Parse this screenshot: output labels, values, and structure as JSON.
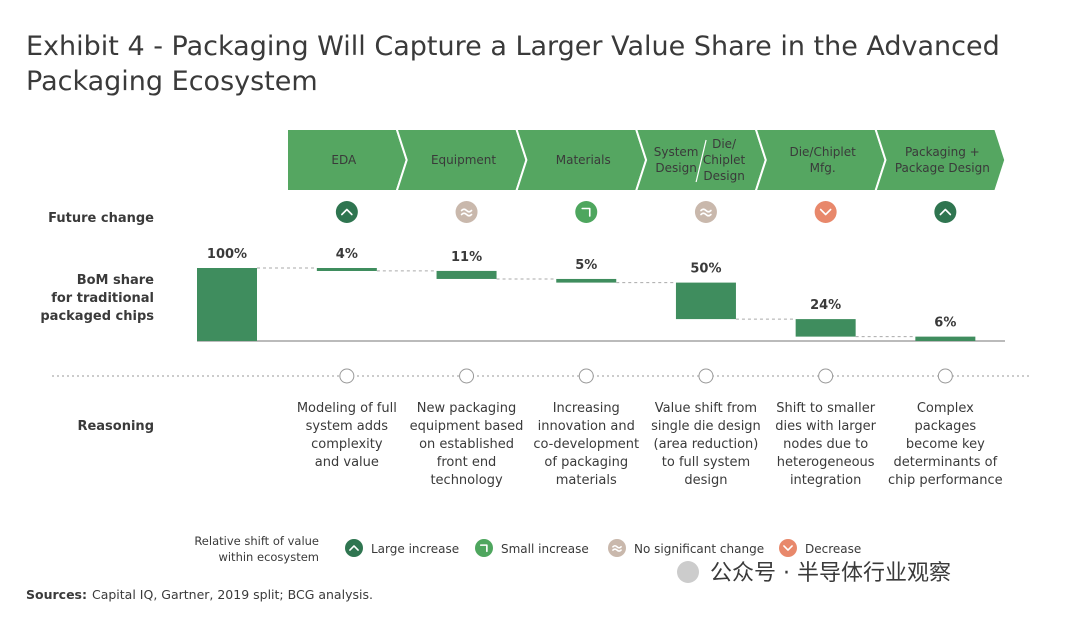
{
  "chart_data": {
    "type": "waterfall",
    "title": "Exhibit 4 - Packaging Will Capture a Larger Value Share in the Advanced\nPackaging Ecosystem",
    "categories": [
      "EDA",
      "Equipment",
      "Materials",
      [
        "System\nDesign",
        "Die/\nChiplet\nDesign"
      ],
      "Die/Chiplet\nMfg.",
      "Packaging +\nPackage Design"
    ],
    "total": 100,
    "total_label": "100%",
    "values": [
      4,
      11,
      5,
      50,
      24,
      6
    ],
    "value_labels": [
      "4%",
      "11%",
      "5%",
      "50%",
      "24%",
      "6%"
    ],
    "ylim": [
      0,
      100
    ],
    "color": "#3f8d5e",
    "stage_color": "#55a661",
    "row_labels": {
      "future_change": "Future change",
      "bom_share": "BoM share\nfor traditional\npackaged chips",
      "reasoning": "Reasoning"
    },
    "future_change": [
      "Large increase",
      "No significant change",
      "Small increase",
      "No significant change",
      "Decrease",
      "Large increase"
    ],
    "reasoning": [
      "Modeling of full\nsystem adds\ncomplexity\nand value",
      "New packaging\nequipment based\non established\nfront end\ntechnology",
      "Increasing\ninnovation and\nco-development\nof packaging\nmaterials",
      "Value shift from\nsingle die design\n(area reduction)\nto full system\ndesign",
      "Shift to smaller\ndies with larger\nnodes due to\nheterogeneous\nintegration",
      "Complex\npackages\nbecome key\ndeterminants of\nchip performance"
    ],
    "legend": {
      "title": "Relative shift of value\nwithin ecosystem",
      "items": [
        {
          "name": "Large increase",
          "color": "#2f7550"
        },
        {
          "name": "Small increase",
          "color": "#4ea65e"
        },
        {
          "name": "No significant change",
          "color": "#c9b8ac"
        },
        {
          "name": "Decrease",
          "color": "#e8886b"
        }
      ]
    },
    "sources_label": "Sources:",
    "sources": "Capital IQ, Gartner, 2019 split; BCG analysis.",
    "watermark": "公众号 · 半导体行业观察"
  }
}
